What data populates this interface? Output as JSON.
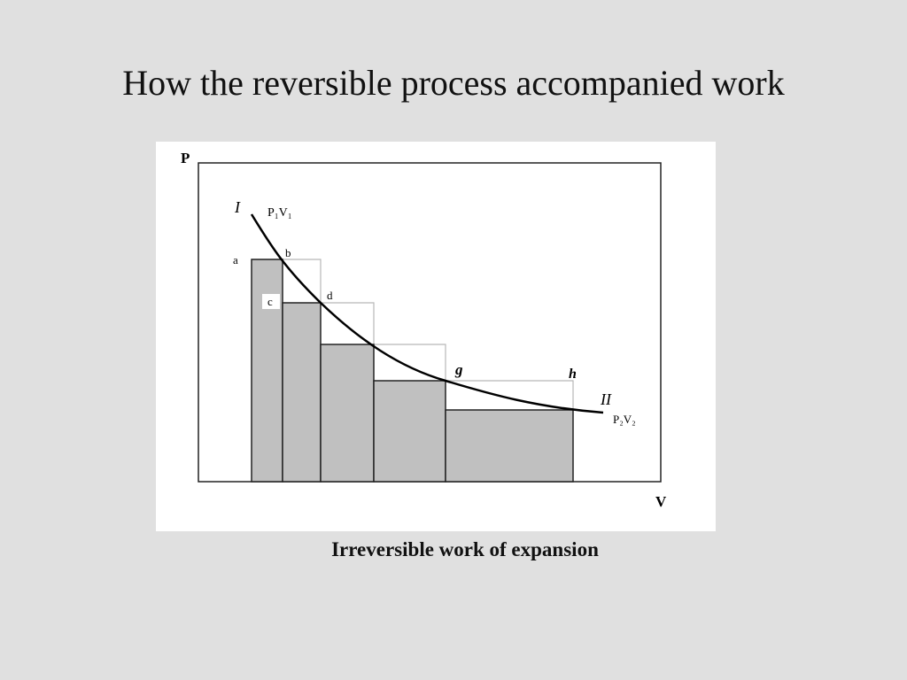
{
  "slide": {
    "title": "How the reversible process accompanied work",
    "caption": "Irreversible work of expansion"
  },
  "diagram": {
    "axis_y_label": "P",
    "axis_x_label": "V",
    "state_1_label": "I",
    "state_1_values": "P₁V₁",
    "state_2_label": "II",
    "state_2_values": "P₂V₂",
    "point_labels": {
      "a": "a",
      "b": "b",
      "c": "c",
      "d": "d",
      "g": "g",
      "h": "h"
    },
    "colors": {
      "bar_fill": "#c0c0c0",
      "curve": "#000000",
      "guide": "#b8b8b8",
      "background": "#e0e0e0"
    }
  }
}
